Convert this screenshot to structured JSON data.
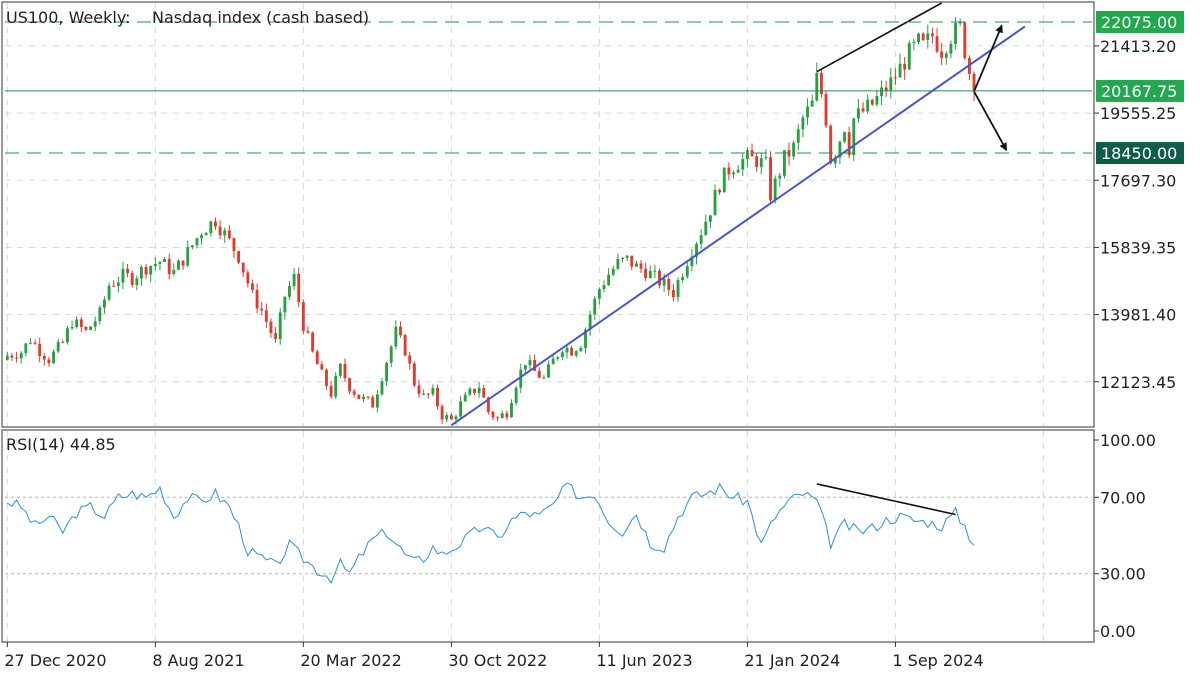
{
  "header": {
    "symbol": "US100, Weekly:",
    "description": "Nasdaq index (cash based)"
  },
  "rsi_header": {
    "label": "RSI(14) 44.85"
  },
  "colors": {
    "bull": "#26a041",
    "bear": "#e03a2f",
    "rsi_line": "#2f8fd8",
    "trendline": "#4a55c8",
    "divergence": "#111111",
    "level_line": "#2e8b57",
    "badge_green": "#22a84f",
    "badge_dark": "#0e5c4a",
    "grid": "#d8d8d8"
  },
  "chart_data": [
    {
      "type": "candlestick",
      "title": "US100, Weekly: Nasdaq index (cash based)",
      "timeframe": "Weekly",
      "ylim": [
        10900,
        22600
      ],
      "y_ticks": [
        "21413.20",
        "19555.25",
        "17697.30",
        "15839.35",
        "13981.40",
        "12123.45"
      ],
      "x_ticks": [
        "27 Dec 2020",
        "8 Aug 2021",
        "20 Mar 2022",
        "30 Oct 2022",
        "11 Jun 2023",
        "21 Jan 2024",
        "1 Sep 2024"
      ],
      "close_path": [
        [
          0,
          12850
        ],
        [
          3,
          12950
        ],
        [
          5,
          13300
        ],
        [
          7,
          13000
        ],
        [
          9,
          12750
        ],
        [
          12,
          13200
        ],
        [
          14,
          13800
        ],
        [
          17,
          13500
        ],
        [
          20,
          14000
        ],
        [
          22,
          14800
        ],
        [
          25,
          15050
        ],
        [
          27,
          15000
        ],
        [
          30,
          15300
        ],
        [
          33,
          15450
        ],
        [
          36,
          15150
        ],
        [
          39,
          15700
        ],
        [
          42,
          16300
        ],
        [
          45,
          16600
        ],
        [
          48,
          16000
        ],
        [
          50,
          15600
        ],
        [
          53,
          14500
        ],
        [
          55,
          14100
        ],
        [
          58,
          13200
        ],
        [
          60,
          14500
        ],
        [
          62,
          15000
        ],
        [
          64,
          13700
        ],
        [
          66,
          12900
        ],
        [
          68,
          12300
        ],
        [
          70,
          11800
        ],
        [
          72,
          12500
        ],
        [
          74,
          12000
        ],
        [
          76,
          11700
        ],
        [
          79,
          11500
        ],
        [
          82,
          12700
        ],
        [
          84,
          13500
        ],
        [
          86,
          13000
        ],
        [
          88,
          12100
        ],
        [
          90,
          11700
        ],
        [
          92,
          11800
        ],
        [
          94,
          11200
        ],
        [
          96,
          11050
        ],
        [
          98,
          11500
        ],
        [
          100,
          11800
        ],
        [
          102,
          12000
        ],
        [
          104,
          11300
        ],
        [
          106,
          11100
        ],
        [
          108,
          11300
        ],
        [
          110,
          12100
        ],
        [
          112,
          12700
        ],
        [
          114,
          12400
        ],
        [
          116,
          12200
        ],
        [
          118,
          12700
        ],
        [
          120,
          13100
        ],
        [
          122,
          13000
        ],
        [
          124,
          13200
        ],
        [
          126,
          14000
        ],
        [
          128,
          14700
        ],
        [
          130,
          15100
        ],
        [
          132,
          15400
        ],
        [
          134,
          15500
        ],
        [
          136,
          15300
        ],
        [
          138,
          15200
        ],
        [
          140,
          15000
        ],
        [
          142,
          14800
        ],
        [
          144,
          14600
        ],
        [
          146,
          15200
        ],
        [
          148,
          15800
        ],
        [
          150,
          16300
        ],
        [
          152,
          16900
        ],
        [
          154,
          17600
        ],
        [
          156,
          18000
        ],
        [
          158,
          18200
        ],
        [
          160,
          18300
        ],
        [
          162,
          18250
        ],
        [
          164,
          18100
        ],
        [
          165,
          17300
        ],
        [
          166,
          17600
        ],
        [
          168,
          18300
        ],
        [
          170,
          18600
        ],
        [
          172,
          19400
        ],
        [
          174,
          19800
        ],
        [
          175,
          20500
        ],
        [
          176,
          20100
        ],
        [
          177,
          19400
        ],
        [
          178,
          18300
        ],
        [
          179,
          18500
        ],
        [
          181,
          19200
        ],
        [
          182,
          18600
        ],
        [
          183,
          19400
        ],
        [
          185,
          19600
        ],
        [
          187,
          19800
        ],
        [
          189,
          20100
        ],
        [
          191,
          20400
        ],
        [
          193,
          20800
        ],
        [
          195,
          21200
        ],
        [
          197,
          21500
        ],
        [
          198,
          21400
        ],
        [
          200,
          21700
        ],
        [
          202,
          21300
        ],
        [
          204,
          21700
        ],
        [
          206,
          21900
        ],
        [
          207,
          21300
        ],
        [
          208,
          20700
        ],
        [
          209,
          20150
        ]
      ],
      "price_levels": [
        {
          "label": "22075.00",
          "value": 22075,
          "style": "dashed",
          "badge": "green"
        },
        {
          "label": "20167.75",
          "value": 20167.75,
          "style": "solid",
          "badge": "green"
        },
        {
          "label": "18450.00",
          "value": 18450,
          "style": "dashed",
          "badge": "dark"
        }
      ],
      "drawings": [
        {
          "kind": "ascending-trendline",
          "from": [
            96,
            10920
          ],
          "to": [
            220,
            21950
          ]
        },
        {
          "kind": "price-divergence-line",
          "from": [
            175,
            20700
          ],
          "to": [
            202,
            22600
          ]
        },
        {
          "kind": "arrow-up",
          "from": [
            209,
            20150
          ],
          "to": [
            215,
            21980
          ]
        },
        {
          "kind": "arrow-down",
          "from": [
            209,
            20150
          ],
          "to": [
            216,
            18530
          ]
        }
      ]
    },
    {
      "type": "line",
      "title": "RSI(14) 44.85",
      "ylim": [
        0,
        100
      ],
      "y_ticks": [
        "100.00",
        "70.00",
        "30.00",
        "0.00"
      ],
      "levels": [
        70,
        30
      ],
      "series": [
        {
          "name": "RSI(14)",
          "last_value": 44.85,
          "path": [
            [
              0,
              68
            ],
            [
              3,
              65
            ],
            [
              6,
              55
            ],
            [
              9,
              60
            ],
            [
              12,
              52
            ],
            [
              15,
              62
            ],
            [
              18,
              65
            ],
            [
              21,
              60
            ],
            [
              24,
              70
            ],
            [
              27,
              72
            ],
            [
              30,
              70
            ],
            [
              33,
              75
            ],
            [
              36,
              60
            ],
            [
              39,
              70
            ],
            [
              42,
              68
            ],
            [
              45,
              72
            ],
            [
              48,
              65
            ],
            [
              50,
              55
            ],
            [
              52,
              42
            ],
            [
              55,
              38
            ],
            [
              58,
              34
            ],
            [
              61,
              45
            ],
            [
              64,
              38
            ],
            [
              67,
              32
            ],
            [
              70,
              28
            ],
            [
              72,
              35
            ],
            [
              74,
              30
            ],
            [
              76,
              38
            ],
            [
              79,
              48
            ],
            [
              82,
              52
            ],
            [
              84,
              46
            ],
            [
              86,
              40
            ],
            [
              88,
              36
            ],
            [
              90,
              38
            ],
            [
              92,
              44
            ],
            [
              94,
              40
            ],
            [
              96,
              43
            ],
            [
              98,
              46
            ],
            [
              100,
              50
            ],
            [
              103,
              55
            ],
            [
              106,
              48
            ],
            [
              109,
              58
            ],
            [
              112,
              62
            ],
            [
              115,
              60
            ],
            [
              118,
              66
            ],
            [
              121,
              76
            ],
            [
              124,
              70
            ],
            [
              127,
              72
            ],
            [
              130,
              58
            ],
            [
              133,
              52
            ],
            [
              136,
              62
            ],
            [
              139,
              46
            ],
            [
              142,
              44
            ],
            [
              145,
              60
            ],
            [
              148,
              70
            ],
            [
              151,
              72
            ],
            [
              154,
              75
            ],
            [
              157,
              70
            ],
            [
              160,
              68
            ],
            [
              163,
              45
            ],
            [
              166,
              60
            ],
            [
              169,
              68
            ],
            [
              172,
              72
            ],
            [
              175,
              68
            ],
            [
              178,
              46
            ],
            [
              181,
              56
            ],
            [
              184,
              52
            ],
            [
              187,
              54
            ],
            [
              190,
              58
            ],
            [
              193,
              60
            ],
            [
              196,
              58
            ],
            [
              199,
              57
            ],
            [
              202,
              55
            ],
            [
              205,
              62
            ],
            [
              207,
              55
            ],
            [
              209,
              45
            ]
          ]
        }
      ],
      "drawings": [
        {
          "kind": "rsi-divergence-line",
          "from": [
            175,
            77
          ],
          "to": [
            205,
            61
          ]
        }
      ]
    }
  ]
}
